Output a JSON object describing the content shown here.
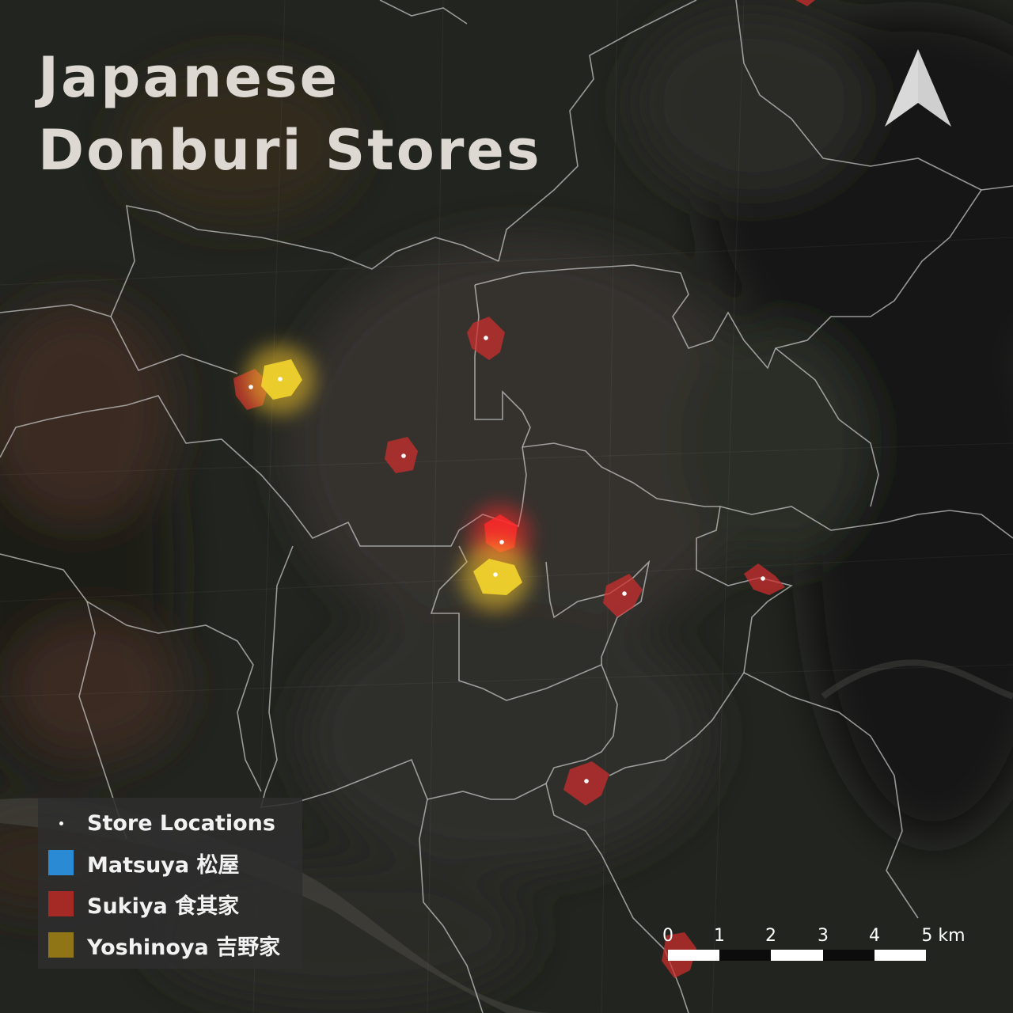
{
  "title": {
    "line1": "Japanese",
    "line2": "Donburi Stores"
  },
  "colors": {
    "matsuya": "#2a8ad4",
    "sukiya": "#c8282b",
    "yoshinoya": "#f0d23a",
    "boundary": "#c9c9c9",
    "background": "#1e201c"
  },
  "legend": {
    "items": [
      {
        "key": "stores",
        "label": "Store Locations",
        "marker": "dot"
      },
      {
        "key": "matsuya",
        "label": "Matsuya 松屋",
        "color": "#2a8ad4"
      },
      {
        "key": "sukiya",
        "label": "Sukiya 食其家",
        "color": "#a52a26"
      },
      {
        "key": "yoshinoya",
        "label": "Yoshinoya 吉野家",
        "color": "#8f7516"
      }
    ]
  },
  "scale": {
    "ticks": [
      "0",
      "1",
      "2",
      "3",
      "4",
      "5 km"
    ]
  },
  "north_arrow": {
    "icon": "north-arrow-icon"
  }
}
